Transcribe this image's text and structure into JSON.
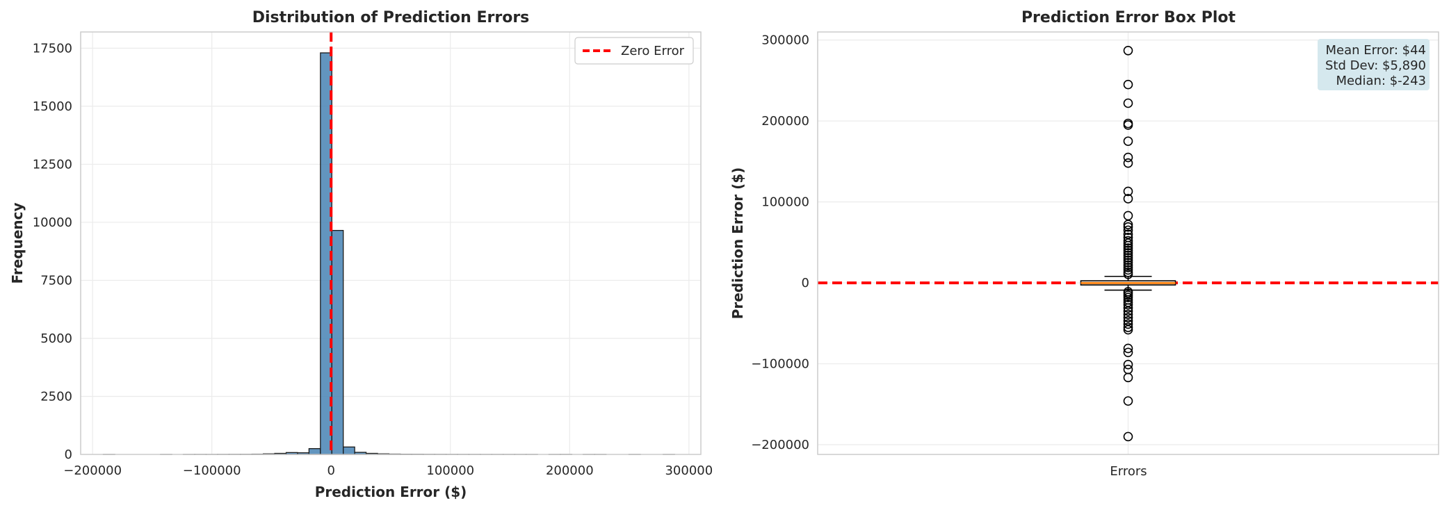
{
  "colors": {
    "bar_fill": "#4682b4",
    "bar_edge": "#1a1a1a",
    "zero_line": "#ff0000",
    "box_median": "#ff7f0e",
    "stats_bg": "#d5e8ee",
    "grid": "#ebebeb",
    "spine": "#cccccc"
  },
  "chart_data": [
    {
      "type": "bar",
      "title": "Distribution of Prediction Errors",
      "xlabel": "Prediction Error ($)",
      "ylabel": "Frequency",
      "xlim": [
        -210000,
        310000
      ],
      "ylim": [
        0,
        18200
      ],
      "xticks": [
        -200000,
        -100000,
        0,
        100000,
        200000,
        300000
      ],
      "xtick_labels": [
        "−200000",
        "−100000",
        "0",
        "100000",
        "200000",
        "300000"
      ],
      "yticks": [
        0,
        2500,
        5000,
        7500,
        10000,
        12500,
        15000,
        17500
      ],
      "ytick_labels": [
        "0",
        "2500",
        "5000",
        "7500",
        "10000",
        "12500",
        "15000",
        "17500"
      ],
      "grid": true,
      "bins": {
        "bin_width": 9580,
        "edges": [
          -191000,
          -181420,
          -171840,
          -162260,
          -152680,
          -143100,
          -133520,
          -123940,
          -114360,
          -104780,
          -95200,
          -85620,
          -76040,
          -66460,
          -56880,
          -47300,
          -37720,
          -28140,
          -18560,
          -8980,
          600,
          10180,
          19760,
          29340,
          38920,
          48500,
          58080,
          67660,
          77240,
          86820,
          96400,
          105980,
          115560,
          125140,
          134720,
          144300,
          153880,
          163460,
          173040,
          182620,
          192200,
          201780,
          211360,
          220940,
          230520,
          240100,
          249680,
          259260,
          268840,
          278420,
          288000
        ],
        "counts": [
          1,
          0,
          0,
          0,
          0,
          1,
          0,
          1,
          2,
          1,
          3,
          5,
          6,
          12,
          25,
          45,
          80,
          70,
          250,
          17300,
          9650,
          320,
          90,
          45,
          25,
          15,
          10,
          8,
          5,
          4,
          3,
          2,
          2,
          1,
          1,
          1,
          1,
          1,
          0,
          1,
          2,
          0,
          1,
          1,
          0,
          0,
          1,
          0,
          0,
          1
        ]
      },
      "reference_line": {
        "x": 0,
        "style": "dashed",
        "label": "Zero Error"
      },
      "legend": {
        "placement": "top-right",
        "entries": [
          "Zero Error"
        ]
      }
    },
    {
      "type": "box",
      "title": "Prediction Error Box Plot",
      "ylabel": "Prediction Error ($)",
      "category": "Errors",
      "ylim": [
        -212000,
        310000
      ],
      "yticks": [
        -200000,
        -100000,
        0,
        100000,
        200000,
        300000
      ],
      "ytick_labels": [
        "−200000",
        "−100000",
        "0",
        "100000",
        "200000",
        "300000"
      ],
      "grid": true,
      "box": {
        "q1": -2600,
        "median": -243,
        "q3": 2500,
        "whisker_low": -9000,
        "whisker_high": 8000
      },
      "outliers": [
        287000,
        245000,
        222000,
        197000,
        195000,
        175000,
        155000,
        148000,
        113000,
        104000,
        83000,
        72000,
        69000,
        65000,
        60000,
        56000,
        52000,
        49000,
        46000,
        43000,
        40000,
        37000,
        34000,
        31000,
        28000,
        25000,
        22000,
        19000,
        16000,
        13000,
        10500,
        -11000,
        -13000,
        -15500,
        -18000,
        -21000,
        -24000,
        -27000,
        -31000,
        -35000,
        -39000,
        -43000,
        -47000,
        -51000,
        -55000,
        -58000,
        -81000,
        -86000,
        -101000,
        -107000,
        -117000,
        -146000,
        -190000
      ],
      "reference_line": {
        "y": 0,
        "style": "dashed"
      },
      "stats": {
        "mean_label": "Mean Error: $44",
        "std_label": "Std Dev: $5,890",
        "median_label": "Median: $-243",
        "placement": "top-right"
      }
    }
  ]
}
